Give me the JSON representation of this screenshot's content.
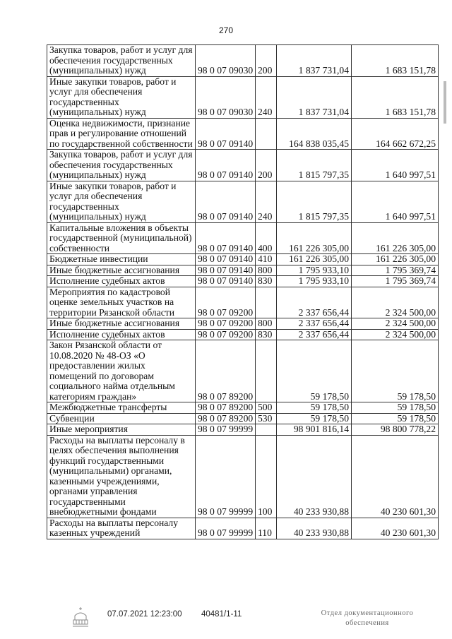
{
  "page_number": "270",
  "rows": [
    {
      "name": "Закупка товаров, работ и услуг для обеспечения государственных (муниципальных) нужд",
      "code": "98 0 07 09030",
      "type": "200",
      "sum1": "1 837 731,04",
      "sum2": "1 683 151,78"
    },
    {
      "name": "Иные закупки товаров, работ и услуг для обеспечения государственных (муниципальных) нужд",
      "code": "98 0 07 09030",
      "type": "240",
      "sum1": "1 837 731,04",
      "sum2": "1 683 151,78"
    },
    {
      "name": "Оценка недвижимости, признание прав и регулирование отношений по государственной собственности",
      "code": "98 0 07 09140",
      "type": "",
      "sum1": "164 838 035,45",
      "sum2": "164 662 672,25"
    },
    {
      "name": "Закупка товаров, работ и услуг для обеспечения государственных (муниципальных) нужд",
      "code": "98 0 07 09140",
      "type": "200",
      "sum1": "1 815 797,35",
      "sum2": "1 640 997,51"
    },
    {
      "name": "Иные закупки товаров, работ и услуг для обеспечения государственных (муниципальных) нужд",
      "code": "98 0 07 09140",
      "type": "240",
      "sum1": "1 815 797,35",
      "sum2": "1 640 997,51"
    },
    {
      "name": "Капитальные вложения в объекты государственной (муниципальной) собственности",
      "code": "98 0 07 09140",
      "type": "400",
      "sum1": "161 226 305,00",
      "sum2": "161 226 305,00"
    },
    {
      "name": "Бюджетные инвестиции",
      "code": "98 0 07 09140",
      "type": "410",
      "sum1": "161 226 305,00",
      "sum2": "161 226 305,00"
    },
    {
      "name": "Иные бюджетные ассигнования",
      "code": "98 0 07 09140",
      "type": "800",
      "sum1": "1 795 933,10",
      "sum2": "1 795 369,74"
    },
    {
      "name": "Исполнение судебных актов",
      "code": "98 0 07 09140",
      "type": "830",
      "sum1": "1 795 933,10",
      "sum2": "1 795 369,74"
    },
    {
      "name": "Мероприятия по кадастровой оценке земельных участков на территории Рязанской области",
      "code": "98 0 07 09200",
      "type": "",
      "sum1": "2 337 656,44",
      "sum2": "2 324 500,00"
    },
    {
      "name": "Иные бюджетные ассигнования",
      "code": "98 0 07 09200",
      "type": "800",
      "sum1": "2 337 656,44",
      "sum2": "2 324 500,00"
    },
    {
      "name": "Исполнение судебных актов",
      "code": "98 0 07 09200",
      "type": "830",
      "sum1": "2 337 656,44",
      "sum2": "2 324 500,00"
    },
    {
      "name": "Закон Рязанской области от 10.08.2020 № 48-ОЗ «О предоставлении жилых помещений по договорам социального найма отдельным категориям граждан»",
      "code": "98 0 07 89200",
      "type": "",
      "sum1": "59 178,50",
      "sum2": "59 178,50"
    },
    {
      "name": "Межбюджетные трансферты",
      "code": "98 0 07 89200",
      "type": "500",
      "sum1": "59 178,50",
      "sum2": "59 178,50"
    },
    {
      "name": "Субвенции",
      "code": "98 0 07 89200",
      "type": "530",
      "sum1": "59 178,50",
      "sum2": "59 178,50"
    },
    {
      "name": "Иные мероприятия",
      "code": "98 0 07 99999",
      "type": "",
      "sum1": "98 901 816,14",
      "sum2": "98 800 778,22"
    },
    {
      "name": "Расходы на выплаты персоналу в целях обеспечения выполнения функций государственными (муниципальными) органами, казенными учреждениями, органами управления государственными внебюджетными фондами",
      "code": "98 0 07 99999",
      "type": "100",
      "sum1": "40 233 930,88",
      "sum2": "40 230 601,30"
    },
    {
      "name": "Расходы на выплаты персоналу казенных учреждений",
      "code": "98 0 07 99999",
      "type": "110",
      "sum1": "40 233 930,88",
      "sum2": "40 230 601,30"
    }
  ],
  "footer": {
    "datetime": "07.07.2021 12:23:00",
    "doc_number": "40481/1-11",
    "department": "Отдел документационного обеспечения"
  }
}
